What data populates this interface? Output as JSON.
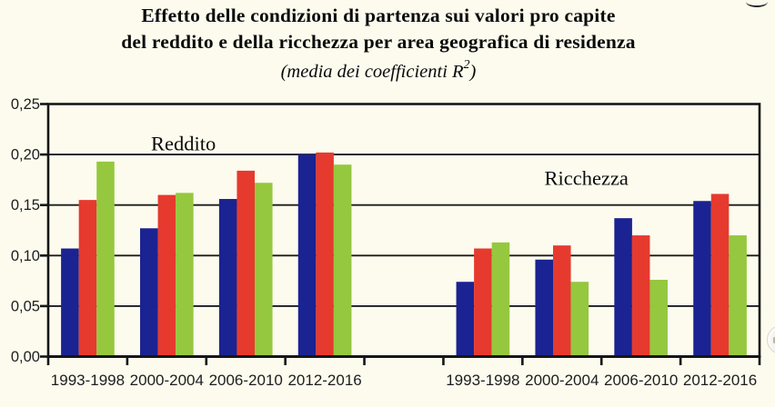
{
  "page": {
    "background": "#fcfbee",
    "decorations": {
      "corner_glyph": "cropped-letter-fragment",
      "edge_widget": "partial-circle-widget"
    }
  },
  "title": {
    "line1": "Effetto delle condizioni di partenza sui valori pro capite",
    "line2": "del reddito e della ricchezza per area geografica di residenza",
    "line3_pre": "(media dei coefficienti R",
    "line3_sup": "2",
    "line3_post": ")"
  },
  "chart_data": {
    "type": "bar",
    "title": "Effetto delle condizioni di partenza sui valori pro capite del reddito e della ricchezza per area geografica di residenza",
    "subtitle": "(media dei coefficienti R²)",
    "xlabel": "",
    "ylabel": "",
    "ylim": [
      0,
      0.25
    ],
    "ytick_values": [
      0,
      0.05,
      0.1,
      0.15,
      0.2,
      0.25
    ],
    "ytick_labels": [
      "0,00",
      "0,05",
      "0,10",
      "0,15",
      "0,20",
      "0,25"
    ],
    "grid": true,
    "frame": true,
    "legend": "none",
    "colors": {
      "axis": "#161616",
      "grid": "#1c1c1c",
      "tick_label": "#1e1e1e",
      "annotation": "#0b0b0b"
    },
    "groups": [
      {
        "label": "Reddito",
        "label_pos": {
          "x_slot": 1.71,
          "y_value": 0.204
        },
        "categories": [
          "1993-1998",
          "2000-2004",
          "2006-2010",
          "2012-2016"
        ],
        "series": [
          {
            "name": "blue",
            "color": "#1a2391",
            "values": [
              0.107,
              0.127,
              0.156,
              0.2
            ]
          },
          {
            "name": "red",
            "color": "#e63a2e",
            "values": [
              0.155,
              0.16,
              0.184,
              0.202
            ]
          },
          {
            "name": "green",
            "color": "#95c83e",
            "values": [
              0.193,
              0.162,
              0.172,
              0.19
            ]
          }
        ]
      },
      {
        "label": "Ricchezza",
        "label_pos": {
          "x_slot": 6.81,
          "y_value": 0.17
        },
        "categories": [
          "1993-1998",
          "2000-2004",
          "2006-2010",
          "2012-2016"
        ],
        "series": [
          {
            "name": "blue",
            "color": "#1a2391",
            "values": [
              0.074,
              0.096,
              0.137,
              0.154
            ]
          },
          {
            "name": "red",
            "color": "#e63a2e",
            "values": [
              0.107,
              0.11,
              0.12,
              0.161
            ]
          },
          {
            "name": "green",
            "color": "#95c83e",
            "values": [
              0.113,
              0.074,
              0.076,
              0.12
            ]
          }
        ]
      }
    ]
  }
}
